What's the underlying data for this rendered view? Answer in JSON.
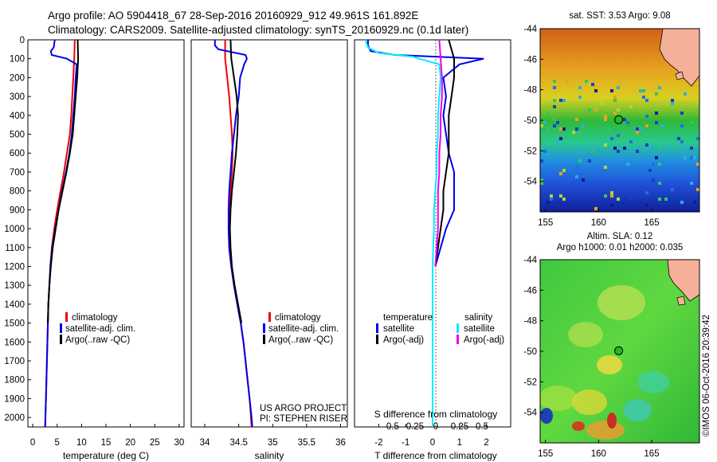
{
  "header": {
    "line1": "Argo profile: AO 5904418_67 28-Sep-2016 20160929_912 49.961S 161.892E",
    "line2": "Climatology: CARS2009. Satellite-adjusted climatology: synTS_20160929.nc (0.1d later)"
  },
  "colors": {
    "climatology": "#ee0000",
    "satellite": "#0000ee",
    "argo": "#000000",
    "salinity_satellite": "#00eeff",
    "salinity_argo": "#ee00ee",
    "land": "#f5b09a",
    "argo_marker": "#22bb22"
  },
  "chart_data": [
    {
      "type": "line",
      "panel": "temperature",
      "xlabel": "temperature (deg C)",
      "ylabel": "",
      "xlim": [
        -1,
        31
      ],
      "ylim": [
        2050,
        0
      ],
      "x_ticks": [
        0,
        5,
        10,
        15,
        20,
        25,
        30
      ],
      "y_ticks": [
        0,
        100,
        200,
        300,
        400,
        500,
        600,
        700,
        800,
        900,
        1000,
        1100,
        1200,
        1300,
        1400,
        1500,
        1600,
        1700,
        1800,
        1900,
        2000
      ],
      "legend": [
        "climatology",
        "satellite-adj. clim.",
        "Argo(..raw -QC)"
      ],
      "series": [
        {
          "name": "climatology",
          "color": "red",
          "depth": [
            0,
            100,
            200,
            300,
            400,
            500,
            600,
            700,
            800,
            900,
            1000,
            1100,
            1200,
            1300,
            1400,
            1500,
            1600,
            1700,
            1800,
            1900,
            2000,
            2050
          ],
          "values": [
            8.6,
            8.5,
            8.3,
            8.1,
            7.9,
            7.6,
            7.0,
            6.4,
            5.7,
            5.0,
            4.4,
            3.9,
            3.6,
            3.4,
            3.2,
            3.1,
            3.0,
            2.9,
            2.8,
            2.7,
            2.6,
            2.55
          ]
        },
        {
          "name": "satellite-adj. clim.",
          "color": "blue",
          "depth": [
            0,
            40,
            60,
            80,
            100,
            130,
            200,
            300,
            400,
            500,
            600,
            700,
            800,
            900,
            1000,
            1100,
            1200,
            1300,
            1400,
            1500,
            1600,
            1700,
            1800,
            1900,
            2000,
            2050
          ],
          "values": [
            4.5,
            4.3,
            3.7,
            3.9,
            7.0,
            9.0,
            8.8,
            8.6,
            8.3,
            8.0,
            7.5,
            6.8,
            6.0,
            5.3,
            4.6,
            4.0,
            3.6,
            3.4,
            3.2,
            3.1,
            3.0,
            2.9,
            2.8,
            2.7,
            2.6,
            2.55
          ]
        },
        {
          "name": "Argo(..raw -QC)",
          "color": "black",
          "depth": [
            0,
            100,
            200,
            300,
            400,
            500,
            600,
            700,
            800,
            900,
            1000,
            1100,
            1200,
            1300,
            1400,
            1500
          ],
          "values": [
            9.2,
            9.3,
            9.1,
            8.8,
            8.5,
            8.2,
            7.6,
            6.9,
            6.1,
            5.3,
            4.7,
            4.1,
            3.7,
            3.4,
            3.2,
            3.1
          ]
        }
      ]
    },
    {
      "type": "line",
      "panel": "salinity",
      "xlabel": "salinity",
      "xlim": [
        33.8,
        36.1
      ],
      "ylim": [
        2050,
        0
      ],
      "x_ticks": [
        34,
        34.5,
        35,
        35.5,
        36
      ],
      "legend": [
        "climatology",
        "satellite-adj. clim.",
        "Argo(..raw -QC)"
      ],
      "series": [
        {
          "name": "climatology",
          "color": "red",
          "depth": [
            0,
            100,
            200,
            300,
            400,
            500,
            600,
            700,
            800,
            900,
            1000,
            1100,
            1200,
            1300,
            1400,
            1500,
            1600,
            1700,
            1800,
            1900,
            2000,
            2050
          ],
          "values": [
            34.3,
            34.3,
            34.33,
            34.36,
            34.38,
            34.4,
            34.41,
            34.4,
            34.38,
            34.36,
            34.35,
            34.36,
            34.39,
            34.43,
            34.48,
            34.53,
            34.57,
            34.6,
            34.63,
            34.66,
            34.68,
            34.69
          ]
        },
        {
          "name": "satellite-adj. clim.",
          "color": "blue",
          "depth": [
            0,
            30,
            50,
            80,
            100,
            130,
            200,
            300,
            400,
            500,
            600,
            700,
            800,
            900,
            1000,
            1100,
            1200,
            1300,
            1400,
            1500,
            1600,
            1700,
            1800,
            1900,
            2000,
            2050
          ],
          "values": [
            34.15,
            34.15,
            34.2,
            34.6,
            34.62,
            34.58,
            34.52,
            34.5,
            34.46,
            34.43,
            34.4,
            34.38,
            34.36,
            34.35,
            34.35,
            34.36,
            34.39,
            34.43,
            34.48,
            34.53,
            34.57,
            34.6,
            34.63,
            34.66,
            34.69,
            34.7
          ]
        },
        {
          "name": "Argo(..raw -QC)",
          "color": "black",
          "depth": [
            0,
            100,
            200,
            300,
            400,
            500,
            600,
            700,
            800,
            900,
            1000,
            1100,
            1200,
            1300,
            1400,
            1500
          ],
          "values": [
            34.38,
            34.39,
            34.43,
            34.47,
            34.49,
            34.48,
            34.46,
            34.43,
            34.4,
            34.38,
            34.37,
            34.38,
            34.4,
            34.44,
            34.49,
            34.54
          ]
        }
      ],
      "annotations": [
        "US ARGO PROJECT",
        "PI: STEPHEN RISER"
      ]
    },
    {
      "type": "line",
      "panel": "difference",
      "top_axis_label": "S difference from climatology",
      "top_ticks": [
        "-0.5",
        "-0.25",
        "0",
        "0.25",
        "0.5"
      ],
      "xlabel": "T difference from climatology",
      "x_ticks": [
        -2,
        -1,
        0,
        1,
        2
      ],
      "xlim": [
        -2.9,
        2.9
      ],
      "ylim": [
        2050,
        0
      ],
      "legend": {
        "temperature": [
          "satellite",
          "Argo(-adj)"
        ],
        "salinity": [
          "satellite",
          "Argo(-adj)"
        ]
      },
      "legend_titles": [
        "temperature",
        "salinity"
      ],
      "series": [
        {
          "name": "temperature satellite",
          "color": "blue",
          "depth": [
            0,
            30,
            60,
            80,
            100,
            130,
            200,
            300,
            400,
            500,
            600,
            700,
            800,
            900,
            1000,
            1100,
            1200
          ],
          "values": [
            -2.4,
            -2.4,
            -2.3,
            -1.4,
            1.9,
            1.0,
            0.4,
            0.5,
            0.4,
            0.5,
            0.6,
            0.8,
            0.8,
            0.8,
            0.5,
            0.3,
            0.1
          ]
        },
        {
          "name": "temperature Argo(-adj)",
          "color": "black",
          "depth": [
            0,
            100,
            200,
            300,
            400,
            500,
            600,
            700,
            800,
            900,
            1000,
            1100,
            1200
          ],
          "values": [
            0.6,
            0.8,
            0.8,
            0.7,
            0.6,
            0.6,
            0.6,
            0.5,
            0.4,
            0.4,
            0.3,
            0.2,
            0.1
          ]
        },
        {
          "name": "salinity satellite",
          "color": "cyan",
          "depth": [
            0,
            40,
            70,
            90,
            100,
            130,
            200,
            300,
            400,
            500,
            600,
            700,
            800,
            900,
            1000,
            1200,
            1400,
            1600,
            1800,
            2000,
            2050
          ],
          "values": [
            -2.5,
            -2.4,
            -2.0,
            -0.7,
            -0.5,
            0.25,
            0.3,
            0.25,
            0.2,
            0.2,
            0.15,
            0.15,
            0.1,
            0.05,
            0.05,
            0.0,
            0.0,
            0.0,
            0.0,
            0.0,
            0.0
          ]
        },
        {
          "name": "salinity Argo(-adj)",
          "color": "magenta",
          "depth": [
            0,
            100,
            200,
            300,
            400,
            500,
            600,
            700,
            800,
            900,
            1000,
            1100,
            1200
          ],
          "values": [
            0.25,
            0.3,
            0.35,
            0.35,
            0.3,
            0.3,
            0.25,
            0.25,
            0.2,
            0.2,
            0.2,
            0.15,
            0.1
          ]
        }
      ]
    },
    {
      "type": "heatmap",
      "panel": "sst_map",
      "title": "sat. SST: 3.53 Argo: 9.08",
      "x_ticks": [
        155,
        160,
        165
      ],
      "y_ticks": [
        -44,
        -46,
        -48,
        -50,
        -52,
        -54
      ],
      "xlim": [
        154.5,
        169.5
      ],
      "ylim": [
        -56,
        -44
      ],
      "argo_position": {
        "lon": 161.892,
        "lat": -49.961
      }
    },
    {
      "type": "heatmap",
      "panel": "sla_map",
      "title_line1": "Altim. SLA: 0.12",
      "title_line2": "Argo h1000: 0.01 h2000: 0.035",
      "x_ticks": [
        155,
        160,
        165
      ],
      "y_ticks": [
        -44,
        -46,
        -48,
        -50,
        -52,
        -54
      ],
      "xlim": [
        154.5,
        169.5
      ],
      "ylim": [
        -56,
        -44
      ],
      "argo_position": {
        "lon": 161.892,
        "lat": -49.961
      }
    }
  ],
  "credit": "©IMOS 06-Oct-2016 20:39:42"
}
